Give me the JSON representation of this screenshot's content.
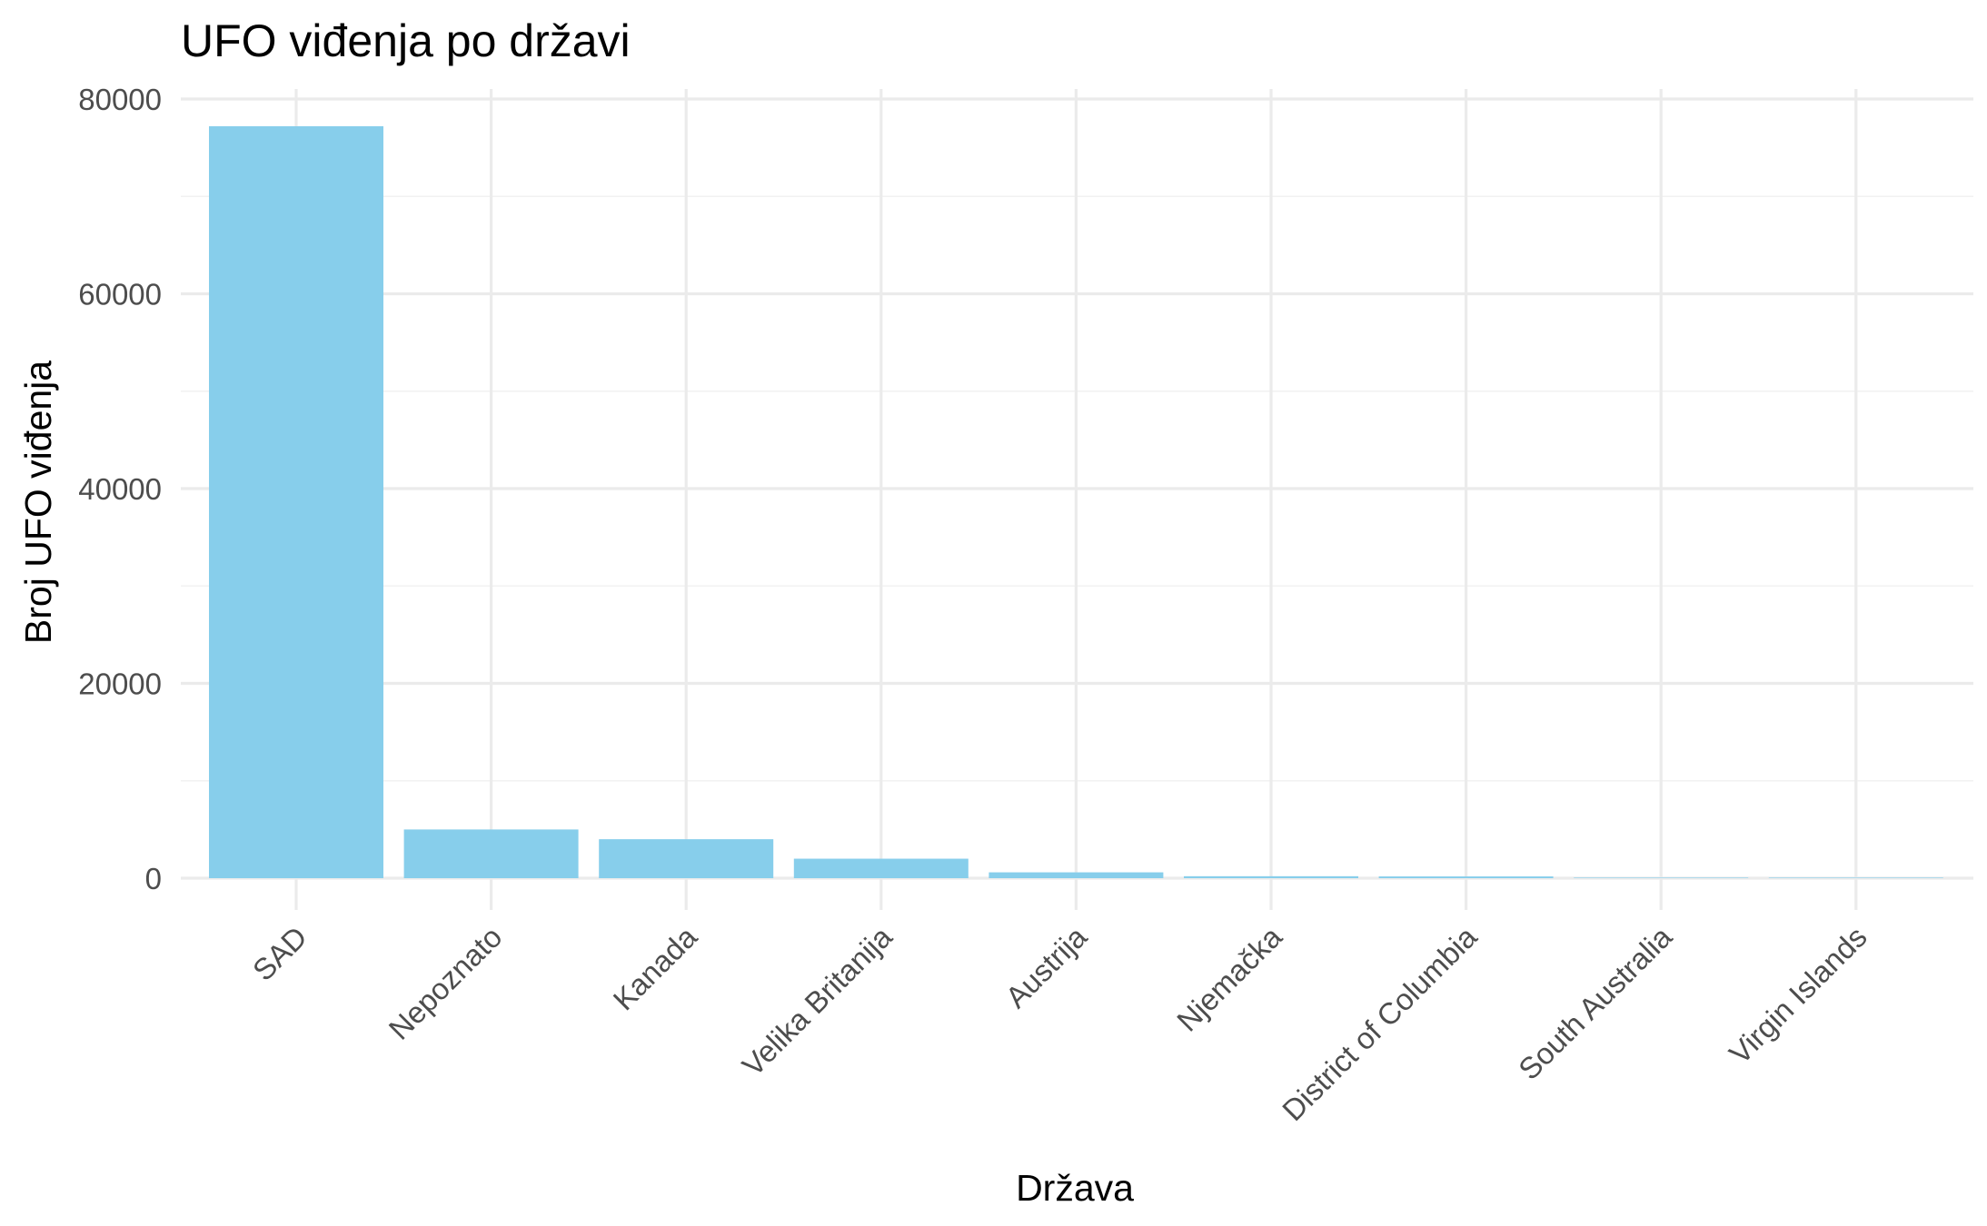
{
  "chart_data": {
    "type": "bar",
    "title": "UFO viđenja po državi",
    "xlabel": "Država",
    "ylabel": "Broj UFO viđenja",
    "categories": [
      "SAD",
      "Nepoznato",
      "Kanada",
      "Velika Britanija",
      "Austrija",
      "Njemačka",
      "District of Columbia",
      "South Australia",
      "Virgin Islands"
    ],
    "values": [
      77200,
      5000,
      4000,
      2000,
      600,
      200,
      180,
      10,
      5
    ],
    "ylim": [
      -2000,
      80000
    ],
    "yticks": [
      0,
      20000,
      40000,
      60000,
      80000
    ],
    "ytick_labels": [
      "0",
      "20000",
      "40000",
      "60000",
      "80000"
    ],
    "bar_color": "#87ceeb",
    "grid": true,
    "legend": "none"
  }
}
